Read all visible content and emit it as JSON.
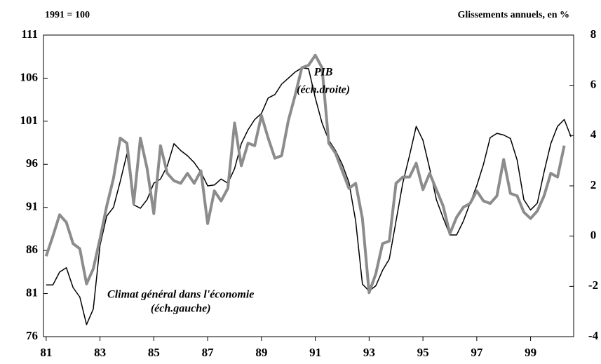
{
  "chart_data": {
    "type": "line",
    "left_note": "1991 = 100",
    "right_note": "Glissements annuels, en %",
    "annotations": [
      {
        "text": "PIB",
        "x": 1991.3,
        "y": 6.5,
        "axis": "y2"
      },
      {
        "text": "(éch.droite)",
        "x": 1991.3,
        "y": 5.8,
        "axis": "y2"
      },
      {
        "text": "Climat général dans l'économie",
        "x": 1986.0,
        "y": 80.8,
        "axis": "y"
      },
      {
        "text": "(éch.gauche)",
        "x": 1986.0,
        "y": 79.2,
        "axis": "y"
      }
    ],
    "x": [
      1981,
      1981.25,
      1981.5,
      1981.75,
      1982,
      1982.25,
      1982.5,
      1982.75,
      1983,
      1983.25,
      1983.5,
      1983.75,
      1984,
      1984.25,
      1984.5,
      1984.75,
      1985,
      1985.25,
      1985.5,
      1985.75,
      1986,
      1986.25,
      1986.5,
      1986.75,
      1987,
      1987.25,
      1987.5,
      1987.75,
      1988,
      1988.25,
      1988.5,
      1988.75,
      1989,
      1989.25,
      1989.5,
      1989.75,
      1990,
      1990.25,
      1990.5,
      1990.75,
      1991,
      1991.25,
      1991.5,
      1991.75,
      1992,
      1992.25,
      1992.5,
      1992.75,
      1993,
      1993.25,
      1993.5,
      1993.75,
      1994,
      1994.25,
      1994.5,
      1994.75,
      1995,
      1995.25,
      1995.5,
      1995.75,
      1996,
      1996.25,
      1996.5,
      1996.75,
      1997,
      1997.25,
      1997.5,
      1997.75,
      1998,
      1998.25,
      1998.5,
      1998.75,
      1999,
      1999.25,
      1999.5,
      1999.75,
      2000,
      2000.25,
      2000.5
    ],
    "series": [
      {
        "color": "#000000",
        "width": 1.5,
        "axis": "y",
        "values": [
          82,
          82,
          83.5,
          84,
          81.7,
          80.6,
          77.4,
          79.2,
          86.6,
          90,
          91,
          94,
          97.2,
          91.3,
          90.9,
          91.9,
          93.8,
          94.3,
          95.8,
          98.4,
          97.6,
          97,
          96.2,
          95.1,
          93.5,
          93.6,
          94.3,
          93.8,
          95.5,
          98.4,
          100,
          101.2,
          101.9,
          103.7,
          104.1,
          105.3,
          106,
          106.7,
          107.2,
          107.1,
          103.7,
          100.8,
          98.8,
          97.6,
          96,
          93.9,
          89.4,
          82.1,
          81.3,
          81.9,
          83.7,
          85,
          89.4,
          93.8,
          97,
          100.4,
          98.8,
          95.5,
          91.9,
          89.8,
          87.8,
          87.8,
          89.4,
          91.5,
          93.5,
          96,
          99.1,
          99.6,
          99.4,
          99,
          96.5,
          91.9,
          90.7,
          91.5,
          95.1,
          98.4,
          100.4,
          101.2,
          99.2
        ]
      },
      {
        "color": "#8c8c8c",
        "width": 4,
        "axis": "y2",
        "values": [
          -0.8,
          0.0,
          0.85,
          0.55,
          -0.3,
          -0.5,
          -1.9,
          -1.3,
          -0.1,
          1.2,
          2.3,
          3.9,
          3.7,
          1.3,
          3.9,
          2.7,
          0.9,
          3.6,
          2.5,
          2.2,
          2.1,
          2.5,
          2.1,
          2.6,
          0.5,
          1.8,
          1.4,
          1.9,
          4.5,
          2.8,
          3.7,
          3.6,
          4.8,
          3.9,
          3.1,
          3.2,
          4.6,
          5.6,
          6.7,
          6.8,
          7.2,
          6.7,
          3.7,
          3.3,
          2.6,
          1.9,
          2.1,
          0.7,
          -2.25,
          -1.5,
          -0.3,
          -0.2,
          2.1,
          2.35,
          2.35,
          2.9,
          1.85,
          2.5,
          1.85,
          1.2,
          0.1,
          0.75,
          1.15,
          1.3,
          1.8,
          1.4,
          1.3,
          1.6,
          3.05,
          1.7,
          1.6,
          0.95,
          0.7,
          1.0,
          1.6,
          2.5,
          2.35,
          3.6,
          null
        ]
      }
    ],
    "xlim": [
      1980.9,
      2000.6
    ],
    "xticks": [
      {
        "value": 1981,
        "label": "81"
      },
      {
        "value": 1983,
        "label": "83"
      },
      {
        "value": 1985,
        "label": "85"
      },
      {
        "value": 1987,
        "label": "87"
      },
      {
        "value": 1989,
        "label": "89"
      },
      {
        "value": 1991,
        "label": "91"
      },
      {
        "value": 1993,
        "label": "93"
      },
      {
        "value": 1995,
        "label": "95"
      },
      {
        "value": 1997,
        "label": "97"
      },
      {
        "value": 1999,
        "label": "99"
      }
    ],
    "ylim": [
      76,
      111
    ],
    "yticks": [
      76,
      81,
      86,
      91,
      96,
      101,
      106,
      111
    ],
    "y2lim": [
      -4,
      8
    ],
    "y2ticks": [
      -4,
      -2,
      0,
      2,
      4,
      6,
      8
    ]
  }
}
